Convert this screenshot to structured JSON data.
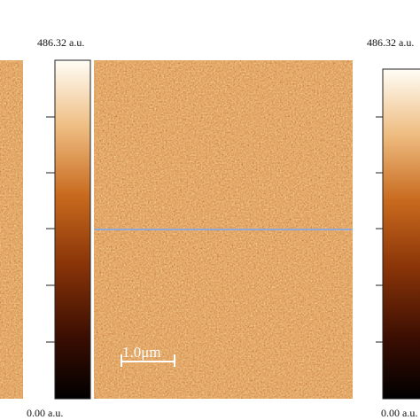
{
  "panels": [
    {
      "colorbar": {
        "max_label": "486.32 a.u.",
        "min_label": "0.00 a.u."
      }
    },
    {
      "colorbar": {
        "max_label": "486.32 a.u.",
        "min_label": "0.00 a.u."
      },
      "scale_bar": "1.0μm"
    }
  ]
}
